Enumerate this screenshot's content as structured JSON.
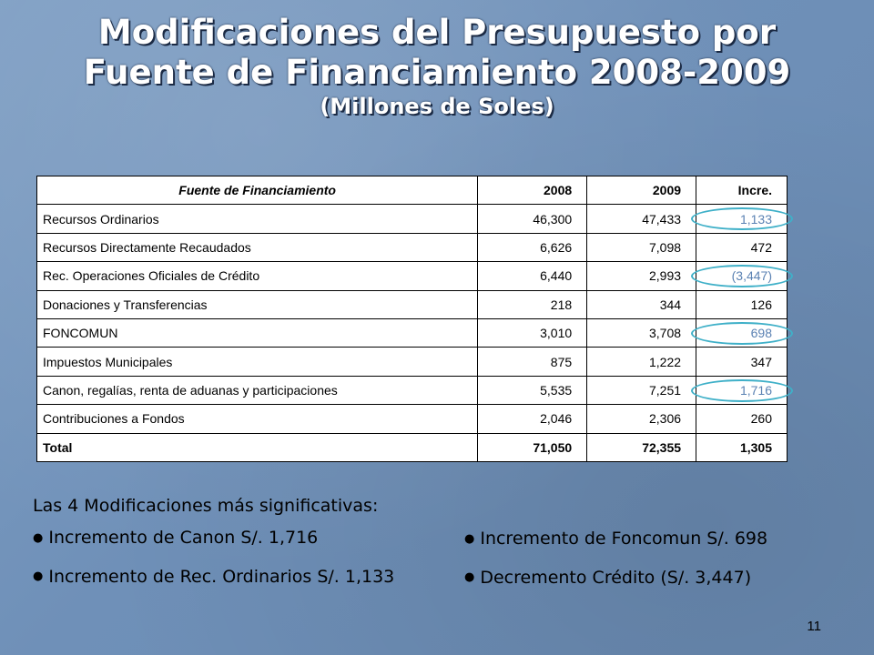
{
  "title": {
    "line1": "Modificaciones del Presupuesto por",
    "line2": "Fuente de Financiamiento 2008-2009",
    "subtitle": "(Millones de Soles)"
  },
  "table": {
    "headers": [
      "Fuente de Financiamiento",
      "2008",
      "2009",
      "Incre."
    ],
    "rows": [
      {
        "name": "Recursos Ordinarios",
        "y2008": "46,300",
        "y2009": "47,433",
        "incre": "1,133"
      },
      {
        "name": "Recursos Directamente Recaudados",
        "y2008": "6,626",
        "y2009": "7,098",
        "incre": "472"
      },
      {
        "name": "Rec. Operaciones Oficiales de Crédito",
        "y2008": "6,440",
        "y2009": "2,993",
        "incre": "(3,447)"
      },
      {
        "name": "Donaciones y Transferencias",
        "y2008": "218",
        "y2009": "344",
        "incre": "126"
      },
      {
        "name": "FONCOMUN",
        "y2008": "3,010",
        "y2009": "3,708",
        "incre": "698"
      },
      {
        "name": "Impuestos Municipales",
        "y2008": "875",
        "y2009": "1,222",
        "incre": "347"
      },
      {
        "name": "Canon, regalías, renta de aduanas y participaciones",
        "y2008": "5,535",
        "y2009": "7,251",
        "incre": "1,716"
      },
      {
        "name": "Contribuciones a Fondos",
        "y2008": "2,046",
        "y2009": "2,306",
        "incre": "260"
      }
    ],
    "total": {
      "name": "Total",
      "y2008": "71,050",
      "y2009": "72,355",
      "incre": "1,305"
    }
  },
  "notes": {
    "heading": "Las 4 Modificaciones más significativas:",
    "left": [
      "Incremento de Canon S/. 1,716",
      "Incremento de Rec. Ordinarios S/. 1,133"
    ],
    "right": [
      "Incremento de Foncomun S/. 698",
      "Decremento Crédito (S/. 3,447)"
    ]
  },
  "slide_number": "11",
  "colors": {
    "background": "#7393bb",
    "highlight_text": "#5b82b3",
    "highlight_oval": "#3fb0c8"
  }
}
